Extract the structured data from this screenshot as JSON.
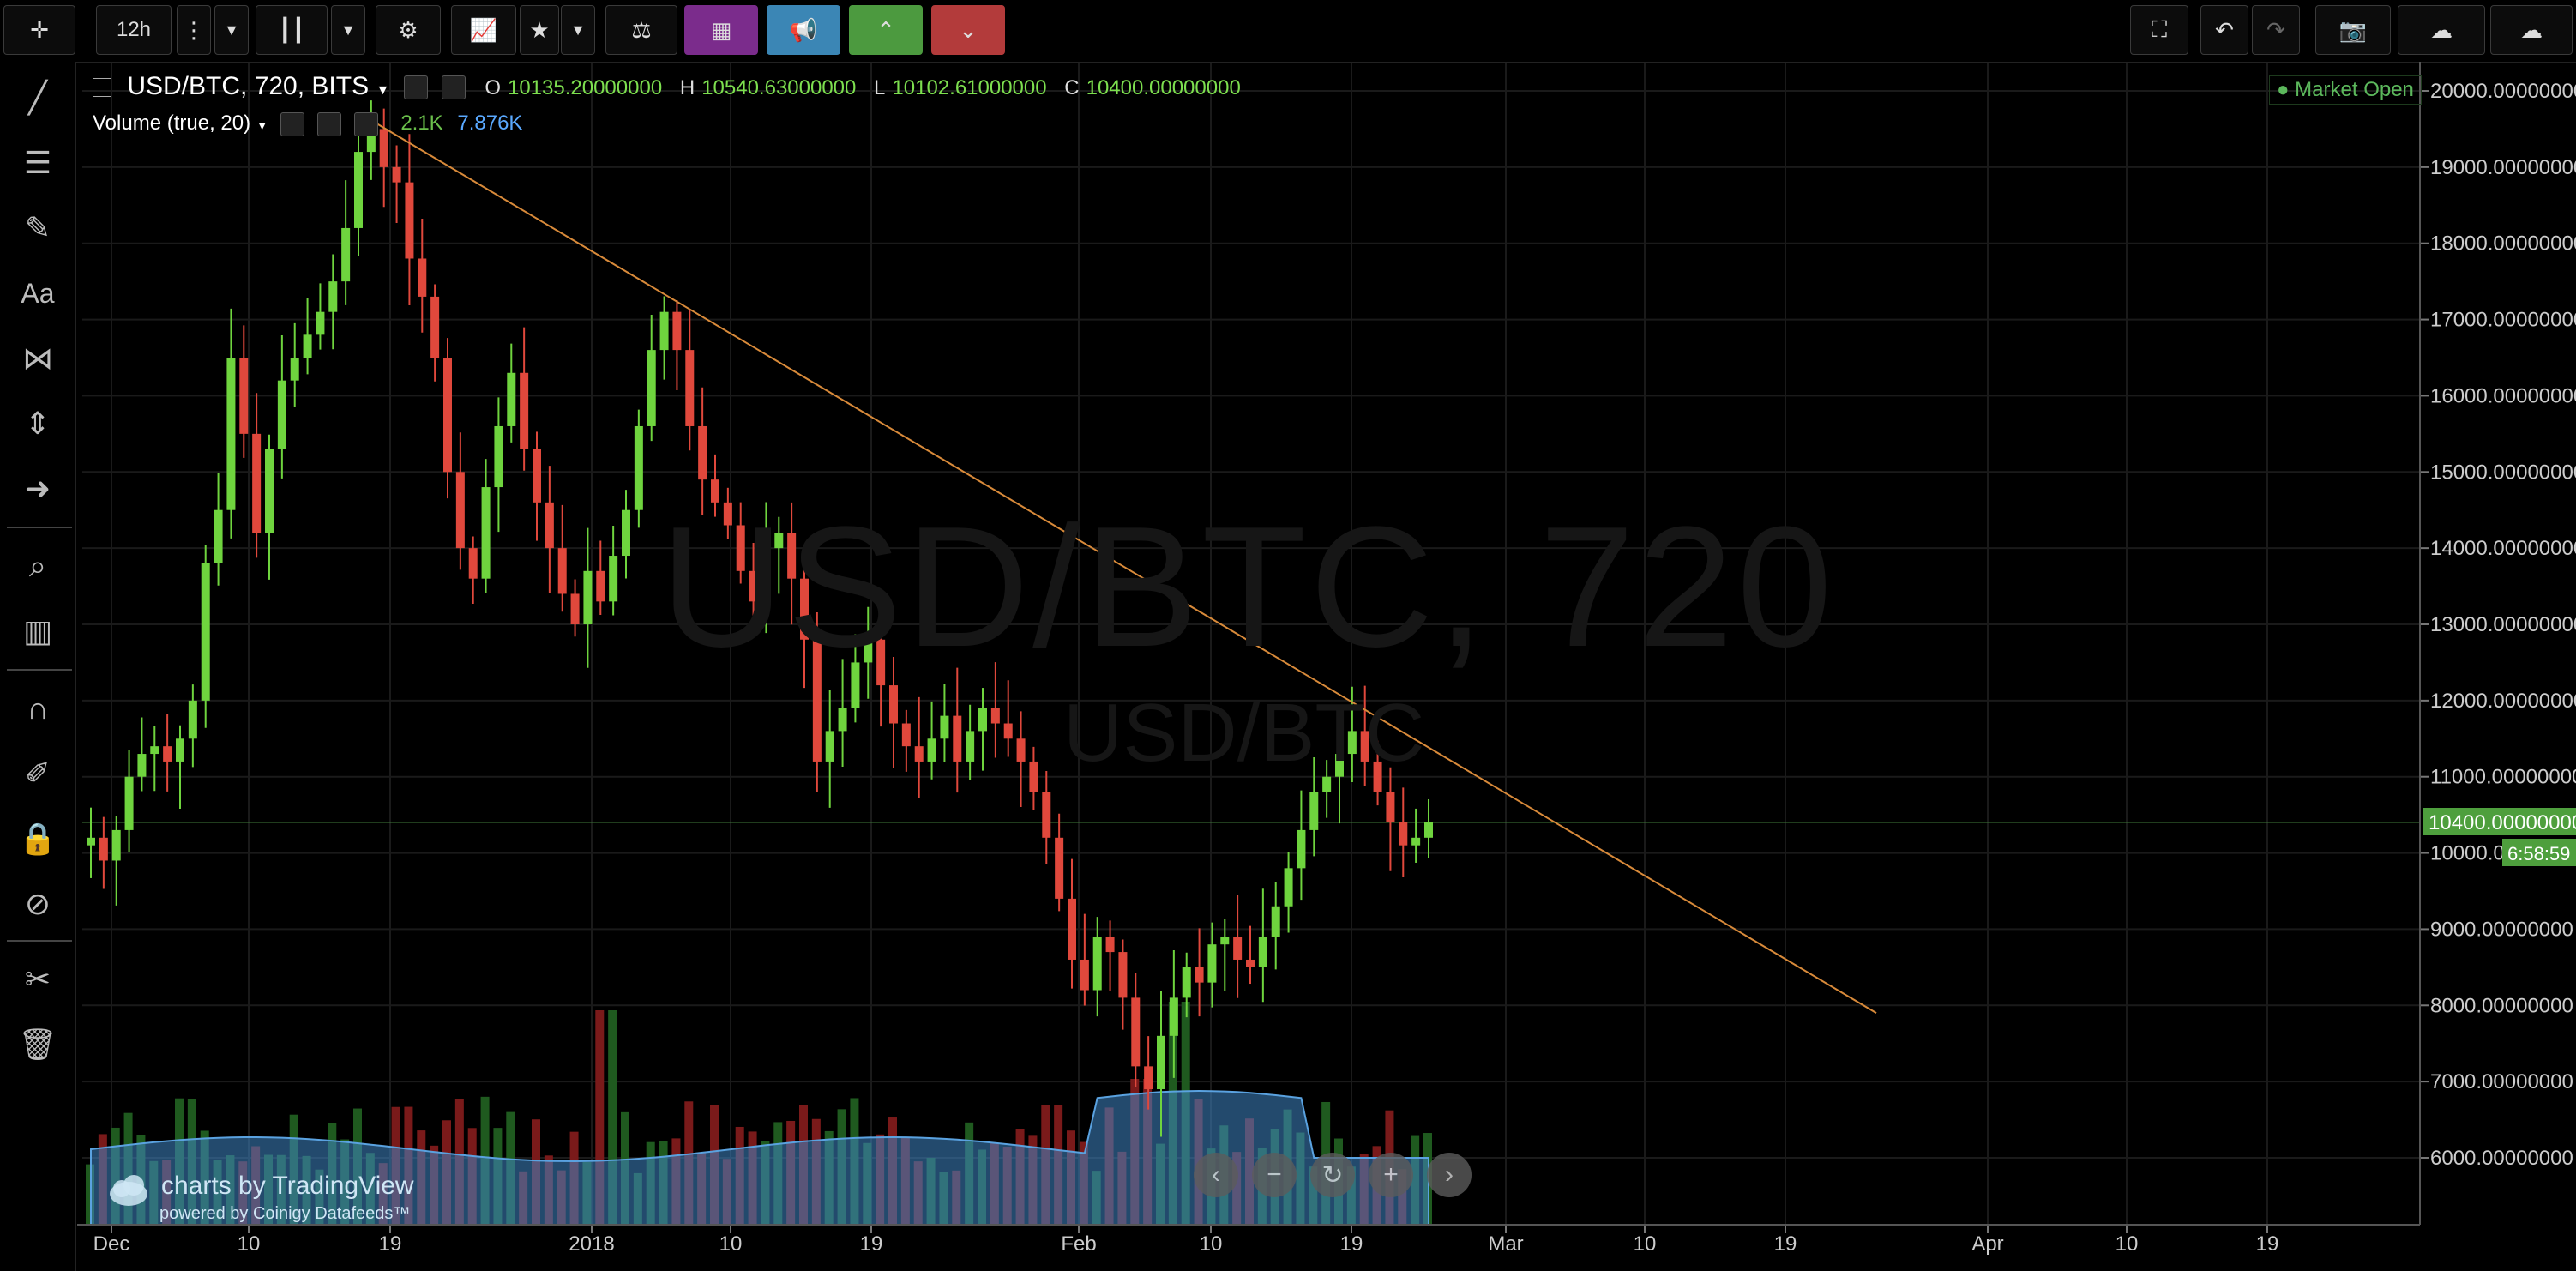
{
  "toolbar": {
    "interval": "12h",
    "icons": [
      "crosshair-icon",
      "dots-icon",
      "chevron-down-icon",
      "candles-icon",
      "gear-icon",
      "indicators-icon",
      "star-icon",
      "compare-icon",
      "cube-icon",
      "megaphone-icon",
      "up-icon",
      "down-icon",
      "fullscreen-icon",
      "undo-icon",
      "redo-icon",
      "camera-icon",
      "cloud-download-icon",
      "cloud-upload-icon"
    ]
  },
  "legend": {
    "symbol": "USD/BTC, 720, BITS",
    "o_label": "O",
    "o": "10135.20000000",
    "h_label": "H",
    "h": "10540.63000000",
    "l_label": "L",
    "l": "10102.61000000",
    "c_label": "C",
    "c": "10400.00000000",
    "volume": "Volume (true, 20)",
    "vol1": "2.1K",
    "vol2": "7.876K"
  },
  "market_status": "Market Open",
  "watermark": "USD/BTC, 720",
  "watermark_sub": "USD/BTC",
  "branding": {
    "line1": "charts by TradingView",
    "line2": "powered by Coinigy Datafeeds™"
  },
  "price_label": {
    "value": "10400.00000000",
    "countdown": "6:58:59"
  },
  "colors": {
    "up": "#6fd43e",
    "down": "#e0483c",
    "trend": "#d88a3a",
    "price_tag": "#4e9f3d",
    "volume_ma": "#3f86c7"
  },
  "chart_data": {
    "type": "candlestick",
    "y_ticks": [
      "20000.00000000",
      "19000.00000000",
      "18000.00000000",
      "17000.00000000",
      "16000.00000000",
      "15000.00000000",
      "14000.00000000",
      "13000.00000000",
      "12000.00000000",
      "11000.00000000",
      "10000.00000000",
      "9000.00000000",
      "8000.00000000",
      "7000.00000000",
      "6000.00000000"
    ],
    "x_ticks": [
      "Dec",
      "10",
      "19",
      "2018",
      "10",
      "19",
      "Feb",
      "10",
      "19",
      "Mar",
      "10",
      "19",
      "Apr",
      "10",
      "19"
    ],
    "ylim": [
      5200,
      20800
    ],
    "closes": [
      10200,
      9900,
      10300,
      11000,
      11300,
      11400,
      11200,
      11500,
      12000,
      13800,
      14500,
      16500,
      15500,
      14200,
      15300,
      16200,
      16500,
      16800,
      17100,
      17500,
      18200,
      19200,
      19500,
      19000,
      18800,
      17800,
      17300,
      16500,
      15000,
      14000,
      13600,
      14800,
      15600,
      16300,
      15300,
      14600,
      14000,
      13400,
      13000,
      13700,
      13300,
      13900,
      14500,
      15600,
      16600,
      17100,
      16600,
      15600,
      14900,
      14600,
      14300,
      13700,
      13300,
      14000,
      14200,
      13600,
      12800,
      11200,
      11600,
      11900,
      12500,
      12800,
      12200,
      11700,
      11400,
      11200,
      11500,
      11800,
      11200,
      11600,
      11900,
      11700,
      11500,
      11200,
      10800,
      10200,
      9400,
      8600,
      8200,
      8900,
      8700,
      8100,
      7200,
      6900,
      7600,
      8100,
      8500,
      8300,
      8800,
      8900,
      8600,
      8500,
      8900,
      9300,
      9800,
      10300,
      10800,
      11000,
      11300,
      11600,
      11200,
      10800,
      10400,
      10100,
      10200,
      10400
    ],
    "trendline": [
      {
        "date": "2017-12-17",
        "value": 19700
      },
      {
        "date": "2018-03-24",
        "value": 7900
      }
    ],
    "volume_ma_level": 6350,
    "current_price": 10400
  }
}
